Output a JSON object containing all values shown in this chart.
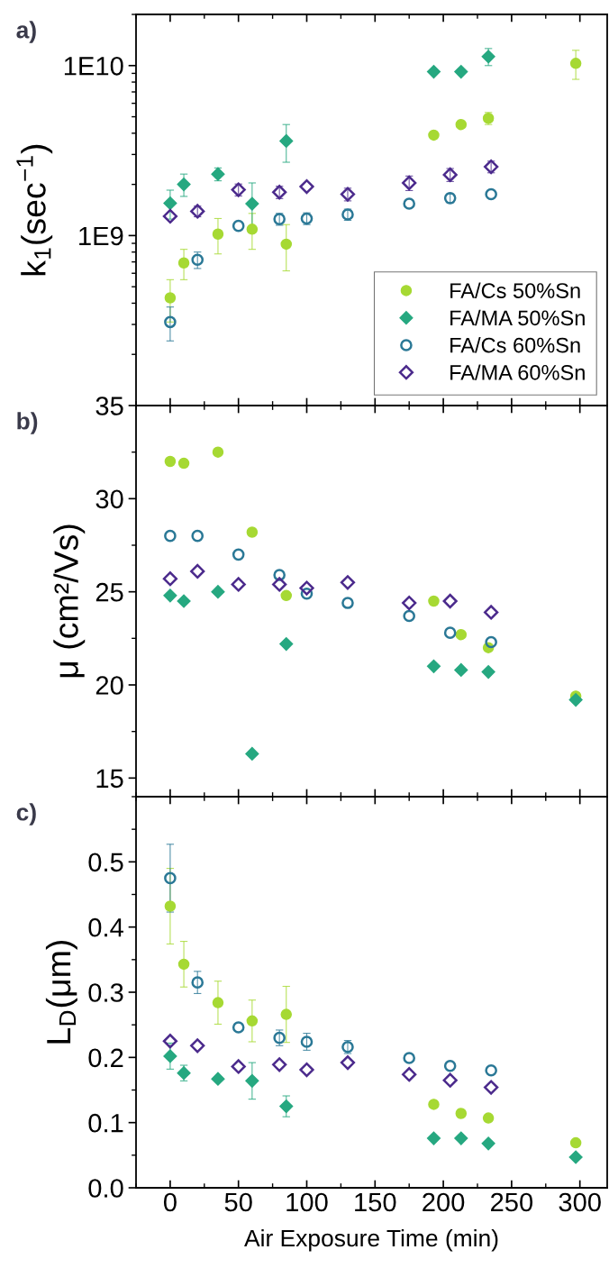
{
  "chart_data": [
    {
      "type": "scatter",
      "title": "a)",
      "ylabel": "k$_{1}$(sec$^{−1}$)",
      "log": "y",
      "xlim": [
        -25,
        320
      ],
      "xticks": [
        0,
        50,
        100,
        150,
        200,
        250,
        300
      ],
      "ylim": [
        100000000.0,
        20000000000.0
      ],
      "yticks": [
        {
          "value": 1000000000.0,
          "label": "1E9"
        },
        {
          "value": 10000000000.0,
          "label": "1E10"
        }
      ],
      "tick_labels": "y",
      "legend": "bottom right",
      "grid": false,
      "series": [
        {
          "name": "FA/Cs 50%Sn",
          "color": "#a6d933",
          "marker": "circle",
          "x": [
            0,
            10,
            35,
            60,
            85,
            193,
            213,
            233,
            297
          ],
          "values": [
            430000000.0,
            690000000.0,
            1020000000.0,
            1090000000.0,
            890000000.0,
            3900000000.0,
            4500000000.0,
            4900000000.0,
            10300000000.0
          ],
          "errors": [
            120000000.0,
            140000000.0,
            240000000.0,
            260000000.0,
            270000000.0,
            null,
            null,
            400000000.0,
            2000000000.0
          ]
        },
        {
          "name": "FA/MA 50%Sn",
          "color": "#26a880",
          "marker": "diamond",
          "x": [
            0,
            10,
            35,
            60,
            85,
            193,
            213,
            233
          ],
          "values": [
            1550000000.0,
            2000000000.0,
            2300000000.0,
            1540000000.0,
            3600000000.0,
            9200000000.0,
            9200000000.0,
            11300000000.0
          ],
          "errors": [
            300000000.0,
            300000000.0,
            200000000.0,
            500000000.0,
            900000000.0,
            null,
            null,
            1300000000.0
          ]
        },
        {
          "name": "FA/Cs 60%Sn",
          "color": "#2a7896",
          "marker": "circle",
          "x": [
            0,
            20,
            50,
            80,
            100,
            130,
            175,
            205,
            235
          ],
          "values": [
            310000000.0,
            720000000.0,
            1140000000.0,
            1250000000.0,
            1260000000.0,
            1330000000.0,
            1540000000.0,
            1660000000.0,
            1750000000.0
          ],
          "errors": [
            70000000.0,
            80000000.0,
            null,
            100000000.0,
            100000000.0,
            100000000.0,
            null,
            100000000.0,
            null
          ]
        },
        {
          "name": "FA/MA 60%Sn",
          "color": "#4b2a8c",
          "marker": "diamond",
          "x": [
            0,
            20,
            50,
            80,
            100,
            130,
            175,
            205,
            235
          ],
          "values": [
            1300000000.0,
            1390000000.0,
            1860000000.0,
            1800000000.0,
            1940000000.0,
            1750000000.0,
            2040000000.0,
            2280000000.0,
            2540000000.0
          ],
          "errors": [
            null,
            100000000.0,
            150000000.0,
            150000000.0,
            null,
            150000000.0,
            200000000.0,
            200000000.0,
            200000000.0
          ]
        }
      ]
    },
    {
      "type": "scatter",
      "title": "b)",
      "ylabel": "μ (cm²/Vs)",
      "xlim": [
        -25,
        320
      ],
      "xticks": [
        0,
        50,
        100,
        150,
        200,
        250,
        300
      ],
      "ylim": [
        14,
        35
      ],
      "yticks": [
        15,
        20,
        25,
        30,
        35
      ],
      "tick_labels": "y",
      "grid": false,
      "series": [
        {
          "color": "#a6d933",
          "marker": "circle",
          "x": [
            0,
            10,
            35,
            60,
            85,
            193,
            213,
            233,
            297
          ],
          "values": [
            32.0,
            31.9,
            32.5,
            28.2,
            24.8,
            24.5,
            22.7,
            22.0,
            19.4
          ]
        },
        {
          "color": "#26a880",
          "marker": "diamond",
          "x": [
            0,
            10,
            35,
            60,
            85,
            193,
            213,
            233,
            297
          ],
          "values": [
            24.8,
            24.5,
            25.0,
            16.3,
            22.2,
            21.0,
            20.8,
            20.7,
            19.2
          ]
        },
        {
          "color": "#2a7896",
          "marker": "circle",
          "x": [
            0,
            20,
            50,
            80,
            100,
            130,
            175,
            205,
            235
          ],
          "values": [
            28.0,
            28.0,
            27.0,
            25.9,
            24.9,
            24.4,
            23.7,
            22.8,
            22.3
          ]
        },
        {
          "color": "#4b2a8c",
          "marker": "diamond",
          "x": [
            0,
            20,
            50,
            80,
            100,
            130,
            175,
            205,
            235
          ],
          "values": [
            25.7,
            26.1,
            25.4,
            25.4,
            25.2,
            25.5,
            24.4,
            24.5,
            23.9
          ]
        }
      ]
    },
    {
      "type": "scatter",
      "title": "c)",
      "ylabel": "L$_{D}$(μm)",
      "xlabel": "Air Exposure Time (min)",
      "xlim": [
        -25,
        320
      ],
      "xticks": [
        0,
        50,
        100,
        150,
        200,
        250,
        300
      ],
      "ylim": [
        0,
        0.6
      ],
      "yticks": [
        {
          "value": 0,
          "label": "0.0"
        },
        0.1,
        0.2,
        0.3,
        0.4,
        0.5
      ],
      "grid": false,
      "series": [
        {
          "color": "#a6d933",
          "marker": "circle",
          "x": [
            0,
            10,
            35,
            60,
            85,
            193,
            213,
            233,
            297
          ],
          "values": [
            0.432,
            0.343,
            0.284,
            0.256,
            0.266,
            0.128,
            0.114,
            0.107,
            0.069
          ],
          "errors": [
            0.058,
            0.035,
            0.033,
            0.032,
            0.043,
            null,
            null,
            null,
            null
          ]
        },
        {
          "color": "#26a880",
          "marker": "diamond",
          "x": [
            0,
            10,
            35,
            60,
            85,
            193,
            213,
            233,
            297
          ],
          "values": [
            0.202,
            0.176,
            0.167,
            0.164,
            0.125,
            0.076,
            0.076,
            0.068,
            0.047
          ],
          "errors": [
            0.02,
            0.012,
            null,
            0.028,
            0.016,
            null,
            null,
            null,
            null
          ]
        },
        {
          "color": "#2a7896",
          "marker": "circle",
          "x": [
            0,
            20,
            50,
            80,
            100,
            130,
            175,
            205,
            235
          ],
          "values": [
            0.475,
            0.315,
            0.246,
            0.23,
            0.224,
            0.216,
            0.199,
            0.187,
            0.18
          ],
          "errors": [
            0.052,
            0.017,
            null,
            0.012,
            0.013,
            0.01,
            null,
            null,
            null
          ]
        },
        {
          "color": "#4b2a8c",
          "marker": "diamond",
          "x": [
            0,
            20,
            50,
            80,
            100,
            130,
            175,
            205,
            235
          ],
          "values": [
            0.225,
            0.218,
            0.186,
            0.189,
            0.181,
            0.192,
            0.174,
            0.165,
            0.154
          ]
        }
      ]
    }
  ]
}
